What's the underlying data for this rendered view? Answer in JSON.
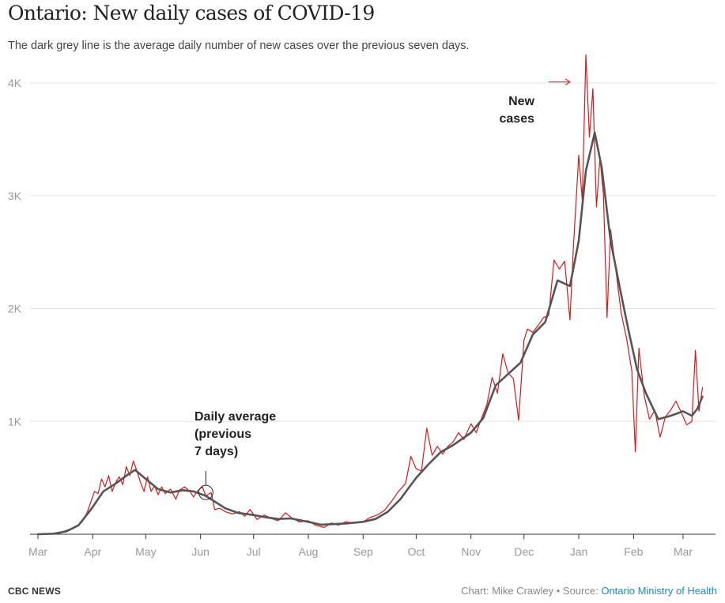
{
  "header": {
    "title": "Ontario: New daily cases of COVID-19",
    "subtitle": "The dark grey line is the average daily number of new cases over the previous seven days."
  },
  "footer": {
    "brand": "CBC NEWS",
    "credit": "Chart: Mike Crawley • Source: ",
    "source_link": "Ontario Ministry of Health"
  },
  "colors": {
    "new_cases": "#d7191c",
    "average": "#555555",
    "grid": "#e3e3e3",
    "axis_text": "#999999",
    "link": "#1a8cc0"
  },
  "chart_data": {
    "type": "line",
    "ylim": [
      0,
      4000
    ],
    "grid": true,
    "y_ticks": [
      {
        "value": 1000,
        "label": "1K"
      },
      {
        "value": 2000,
        "label": "2K"
      },
      {
        "value": 3000,
        "label": "3K"
      },
      {
        "value": 4000,
        "label": "4K"
      }
    ],
    "x_ticks": [
      {
        "date": "2020-03-01",
        "label": "Mar"
      },
      {
        "date": "2020-04-01",
        "label": "Apr"
      },
      {
        "date": "2020-05-01",
        "label": "May"
      },
      {
        "date": "2020-06-01",
        "label": "Jun"
      },
      {
        "date": "2020-07-01",
        "label": "Jul"
      },
      {
        "date": "2020-08-01",
        "label": "Aug"
      },
      {
        "date": "2020-09-01",
        "label": "Sep"
      },
      {
        "date": "2020-10-01",
        "label": "Oct"
      },
      {
        "date": "2020-11-01",
        "label": "Nov"
      },
      {
        "date": "2020-12-01",
        "label": "Dec"
      },
      {
        "date": "2021-01-01",
        "label": "Jan"
      },
      {
        "date": "2021-02-01",
        "label": "Feb"
      },
      {
        "date": "2021-03-01",
        "label": "Mar"
      }
    ],
    "xlim": [
      "2020-03-01",
      "2021-03-14"
    ],
    "annotations": [
      {
        "text": [
          "New",
          "cases"
        ],
        "series": "new_cases",
        "date": "2021-01-05",
        "value": 3750
      },
      {
        "text": [
          "Daily average",
          "(previous",
          "7 days)"
        ],
        "series": "average",
        "date": "2020-06-04",
        "value": 370
      }
    ],
    "series": [
      {
        "key": "average",
        "points": [
          [
            "2020-03-01",
            0
          ],
          [
            "2020-03-10",
            5
          ],
          [
            "2020-03-17",
            25
          ],
          [
            "2020-03-24",
            80
          ],
          [
            "2020-03-31",
            220
          ],
          [
            "2020-04-07",
            380
          ],
          [
            "2020-04-14",
            450
          ],
          [
            "2020-04-21",
            530
          ],
          [
            "2020-04-25",
            570
          ],
          [
            "2020-05-01",
            490
          ],
          [
            "2020-05-08",
            400
          ],
          [
            "2020-05-15",
            370
          ],
          [
            "2020-05-22",
            390
          ],
          [
            "2020-05-28",
            380
          ],
          [
            "2020-06-04",
            340
          ],
          [
            "2020-06-08",
            300
          ],
          [
            "2020-06-15",
            230
          ],
          [
            "2020-06-22",
            190
          ],
          [
            "2020-07-01",
            170
          ],
          [
            "2020-07-08",
            150
          ],
          [
            "2020-07-15",
            135
          ],
          [
            "2020-07-22",
            140
          ],
          [
            "2020-08-01",
            110
          ],
          [
            "2020-08-08",
            85
          ],
          [
            "2020-08-15",
            90
          ],
          [
            "2020-08-22",
            95
          ],
          [
            "2020-09-01",
            110
          ],
          [
            "2020-09-08",
            135
          ],
          [
            "2020-09-15",
            200
          ],
          [
            "2020-09-22",
            310
          ],
          [
            "2020-10-01",
            500
          ],
          [
            "2020-10-08",
            620
          ],
          [
            "2020-10-15",
            730
          ],
          [
            "2020-10-22",
            790
          ],
          [
            "2020-11-01",
            900
          ],
          [
            "2020-11-08",
            1030
          ],
          [
            "2020-11-15",
            1320
          ],
          [
            "2020-11-22",
            1420
          ],
          [
            "2020-11-29",
            1520
          ],
          [
            "2020-12-06",
            1770
          ],
          [
            "2020-12-13",
            1880
          ],
          [
            "2020-12-20",
            2250
          ],
          [
            "2020-12-27",
            2200
          ],
          [
            "2021-01-01",
            2600
          ],
          [
            "2021-01-05",
            3220
          ],
          [
            "2021-01-10",
            3560
          ],
          [
            "2021-01-14",
            3250
          ],
          [
            "2021-01-19",
            2600
          ],
          [
            "2021-01-24",
            2200
          ],
          [
            "2021-01-29",
            1820
          ],
          [
            "2021-02-03",
            1460
          ],
          [
            "2021-02-08",
            1250
          ],
          [
            "2021-02-15",
            1020
          ],
          [
            "2021-02-22",
            1050
          ],
          [
            "2021-03-01",
            1090
          ],
          [
            "2021-03-06",
            1050
          ],
          [
            "2021-03-09",
            1110
          ],
          [
            "2021-03-12",
            1220
          ]
        ]
      },
      {
        "key": "new_cases",
        "points": [
          [
            "2020-03-01",
            0
          ],
          [
            "2020-03-12",
            5
          ],
          [
            "2020-03-18",
            40
          ],
          [
            "2020-03-22",
            60
          ],
          [
            "2020-03-26",
            110
          ],
          [
            "2020-03-29",
            200
          ],
          [
            "2020-03-31",
            290
          ],
          [
            "2020-04-02",
            380
          ],
          [
            "2020-04-04",
            360
          ],
          [
            "2020-04-06",
            490
          ],
          [
            "2020-04-08",
            420
          ],
          [
            "2020-04-10",
            520
          ],
          [
            "2020-04-12",
            380
          ],
          [
            "2020-04-14",
            460
          ],
          [
            "2020-04-16",
            510
          ],
          [
            "2020-04-18",
            440
          ],
          [
            "2020-04-20",
            600
          ],
          [
            "2020-04-22",
            520
          ],
          [
            "2020-04-24",
            650
          ],
          [
            "2020-04-26",
            560
          ],
          [
            "2020-04-28",
            460
          ],
          [
            "2020-04-30",
            380
          ],
          [
            "2020-05-02",
            510
          ],
          [
            "2020-05-04",
            380
          ],
          [
            "2020-05-06",
            430
          ],
          [
            "2020-05-08",
            350
          ],
          [
            "2020-05-10",
            420
          ],
          [
            "2020-05-12",
            360
          ],
          [
            "2020-05-15",
            400
          ],
          [
            "2020-05-18",
            310
          ],
          [
            "2020-05-20",
            390
          ],
          [
            "2020-05-23",
            420
          ],
          [
            "2020-05-26",
            380
          ],
          [
            "2020-05-28",
            330
          ],
          [
            "2020-05-30",
            380
          ],
          [
            "2020-06-02",
            420
          ],
          [
            "2020-06-04",
            340
          ],
          [
            "2020-06-07",
            370
          ],
          [
            "2020-06-09",
            220
          ],
          [
            "2020-06-12",
            230
          ],
          [
            "2020-06-15",
            200
          ],
          [
            "2020-06-19",
            180
          ],
          [
            "2020-06-23",
            200
          ],
          [
            "2020-06-26",
            160
          ],
          [
            "2020-06-29",
            220
          ],
          [
            "2020-07-03",
            130
          ],
          [
            "2020-07-07",
            170
          ],
          [
            "2020-07-11",
            140
          ],
          [
            "2020-07-15",
            120
          ],
          [
            "2020-07-19",
            190
          ],
          [
            "2020-07-23",
            140
          ],
          [
            "2020-07-27",
            110
          ],
          [
            "2020-08-01",
            120
          ],
          [
            "2020-08-05",
            80
          ],
          [
            "2020-08-10",
            60
          ],
          [
            "2020-08-14",
            100
          ],
          [
            "2020-08-18",
            80
          ],
          [
            "2020-08-22",
            110
          ],
          [
            "2020-08-27",
            100
          ],
          [
            "2020-09-01",
            110
          ],
          [
            "2020-09-05",
            150
          ],
          [
            "2020-09-09",
            170
          ],
          [
            "2020-09-13",
            210
          ],
          [
            "2020-09-17",
            290
          ],
          [
            "2020-09-21",
            380
          ],
          [
            "2020-09-25",
            450
          ],
          [
            "2020-09-28",
            690
          ],
          [
            "2020-10-01",
            580
          ],
          [
            "2020-10-04",
            560
          ],
          [
            "2020-10-07",
            940
          ],
          [
            "2020-10-10",
            700
          ],
          [
            "2020-10-13",
            780
          ],
          [
            "2020-10-16",
            710
          ],
          [
            "2020-10-19",
            780
          ],
          [
            "2020-10-22",
            820
          ],
          [
            "2020-10-25",
            900
          ],
          [
            "2020-10-28",
            840
          ],
          [
            "2020-11-01",
            980
          ],
          [
            "2020-11-04",
            900
          ],
          [
            "2020-11-07",
            1030
          ],
          [
            "2020-11-10",
            1150
          ],
          [
            "2020-11-13",
            1390
          ],
          [
            "2020-11-16",
            1250
          ],
          [
            "2020-11-19",
            1600
          ],
          [
            "2020-11-22",
            1430
          ],
          [
            "2020-11-25",
            1380
          ],
          [
            "2020-11-28",
            1010
          ],
          [
            "2020-12-01",
            1720
          ],
          [
            "2020-12-03",
            1820
          ],
          [
            "2020-12-06",
            1790
          ],
          [
            "2020-12-09",
            1850
          ],
          [
            "2020-12-12",
            1920
          ],
          [
            "2020-12-15",
            1940
          ],
          [
            "2020-12-18",
            2430
          ],
          [
            "2020-12-21",
            2350
          ],
          [
            "2020-12-24",
            2420
          ],
          [
            "2020-12-27",
            1900
          ],
          [
            "2020-12-29",
            2550
          ],
          [
            "2021-01-01",
            3360
          ],
          [
            "2021-01-03",
            2960
          ],
          [
            "2021-01-05",
            4250
          ],
          [
            "2021-01-07",
            3520
          ],
          [
            "2021-01-09",
            3950
          ],
          [
            "2021-01-11",
            2900
          ],
          [
            "2021-01-13",
            3340
          ],
          [
            "2021-01-15",
            3000
          ],
          [
            "2021-01-17",
            1920
          ],
          [
            "2021-01-19",
            2700
          ],
          [
            "2021-01-22",
            2340
          ],
          [
            "2021-01-25",
            1960
          ],
          [
            "2021-01-28",
            1740
          ],
          [
            "2021-01-31",
            1450
          ],
          [
            "2021-02-02",
            730
          ],
          [
            "2021-02-04",
            1650
          ],
          [
            "2021-02-07",
            1230
          ],
          [
            "2021-02-10",
            1020
          ],
          [
            "2021-02-13",
            1100
          ],
          [
            "2021-02-16",
            860
          ],
          [
            "2021-02-19",
            1040
          ],
          [
            "2021-02-22",
            1100
          ],
          [
            "2021-02-25",
            1180
          ],
          [
            "2021-02-28",
            1080
          ],
          [
            "2021-03-03",
            970
          ],
          [
            "2021-03-06",
            1000
          ],
          [
            "2021-03-08",
            1630
          ],
          [
            "2021-03-10",
            1090
          ],
          [
            "2021-03-12",
            1300
          ]
        ]
      }
    ]
  }
}
